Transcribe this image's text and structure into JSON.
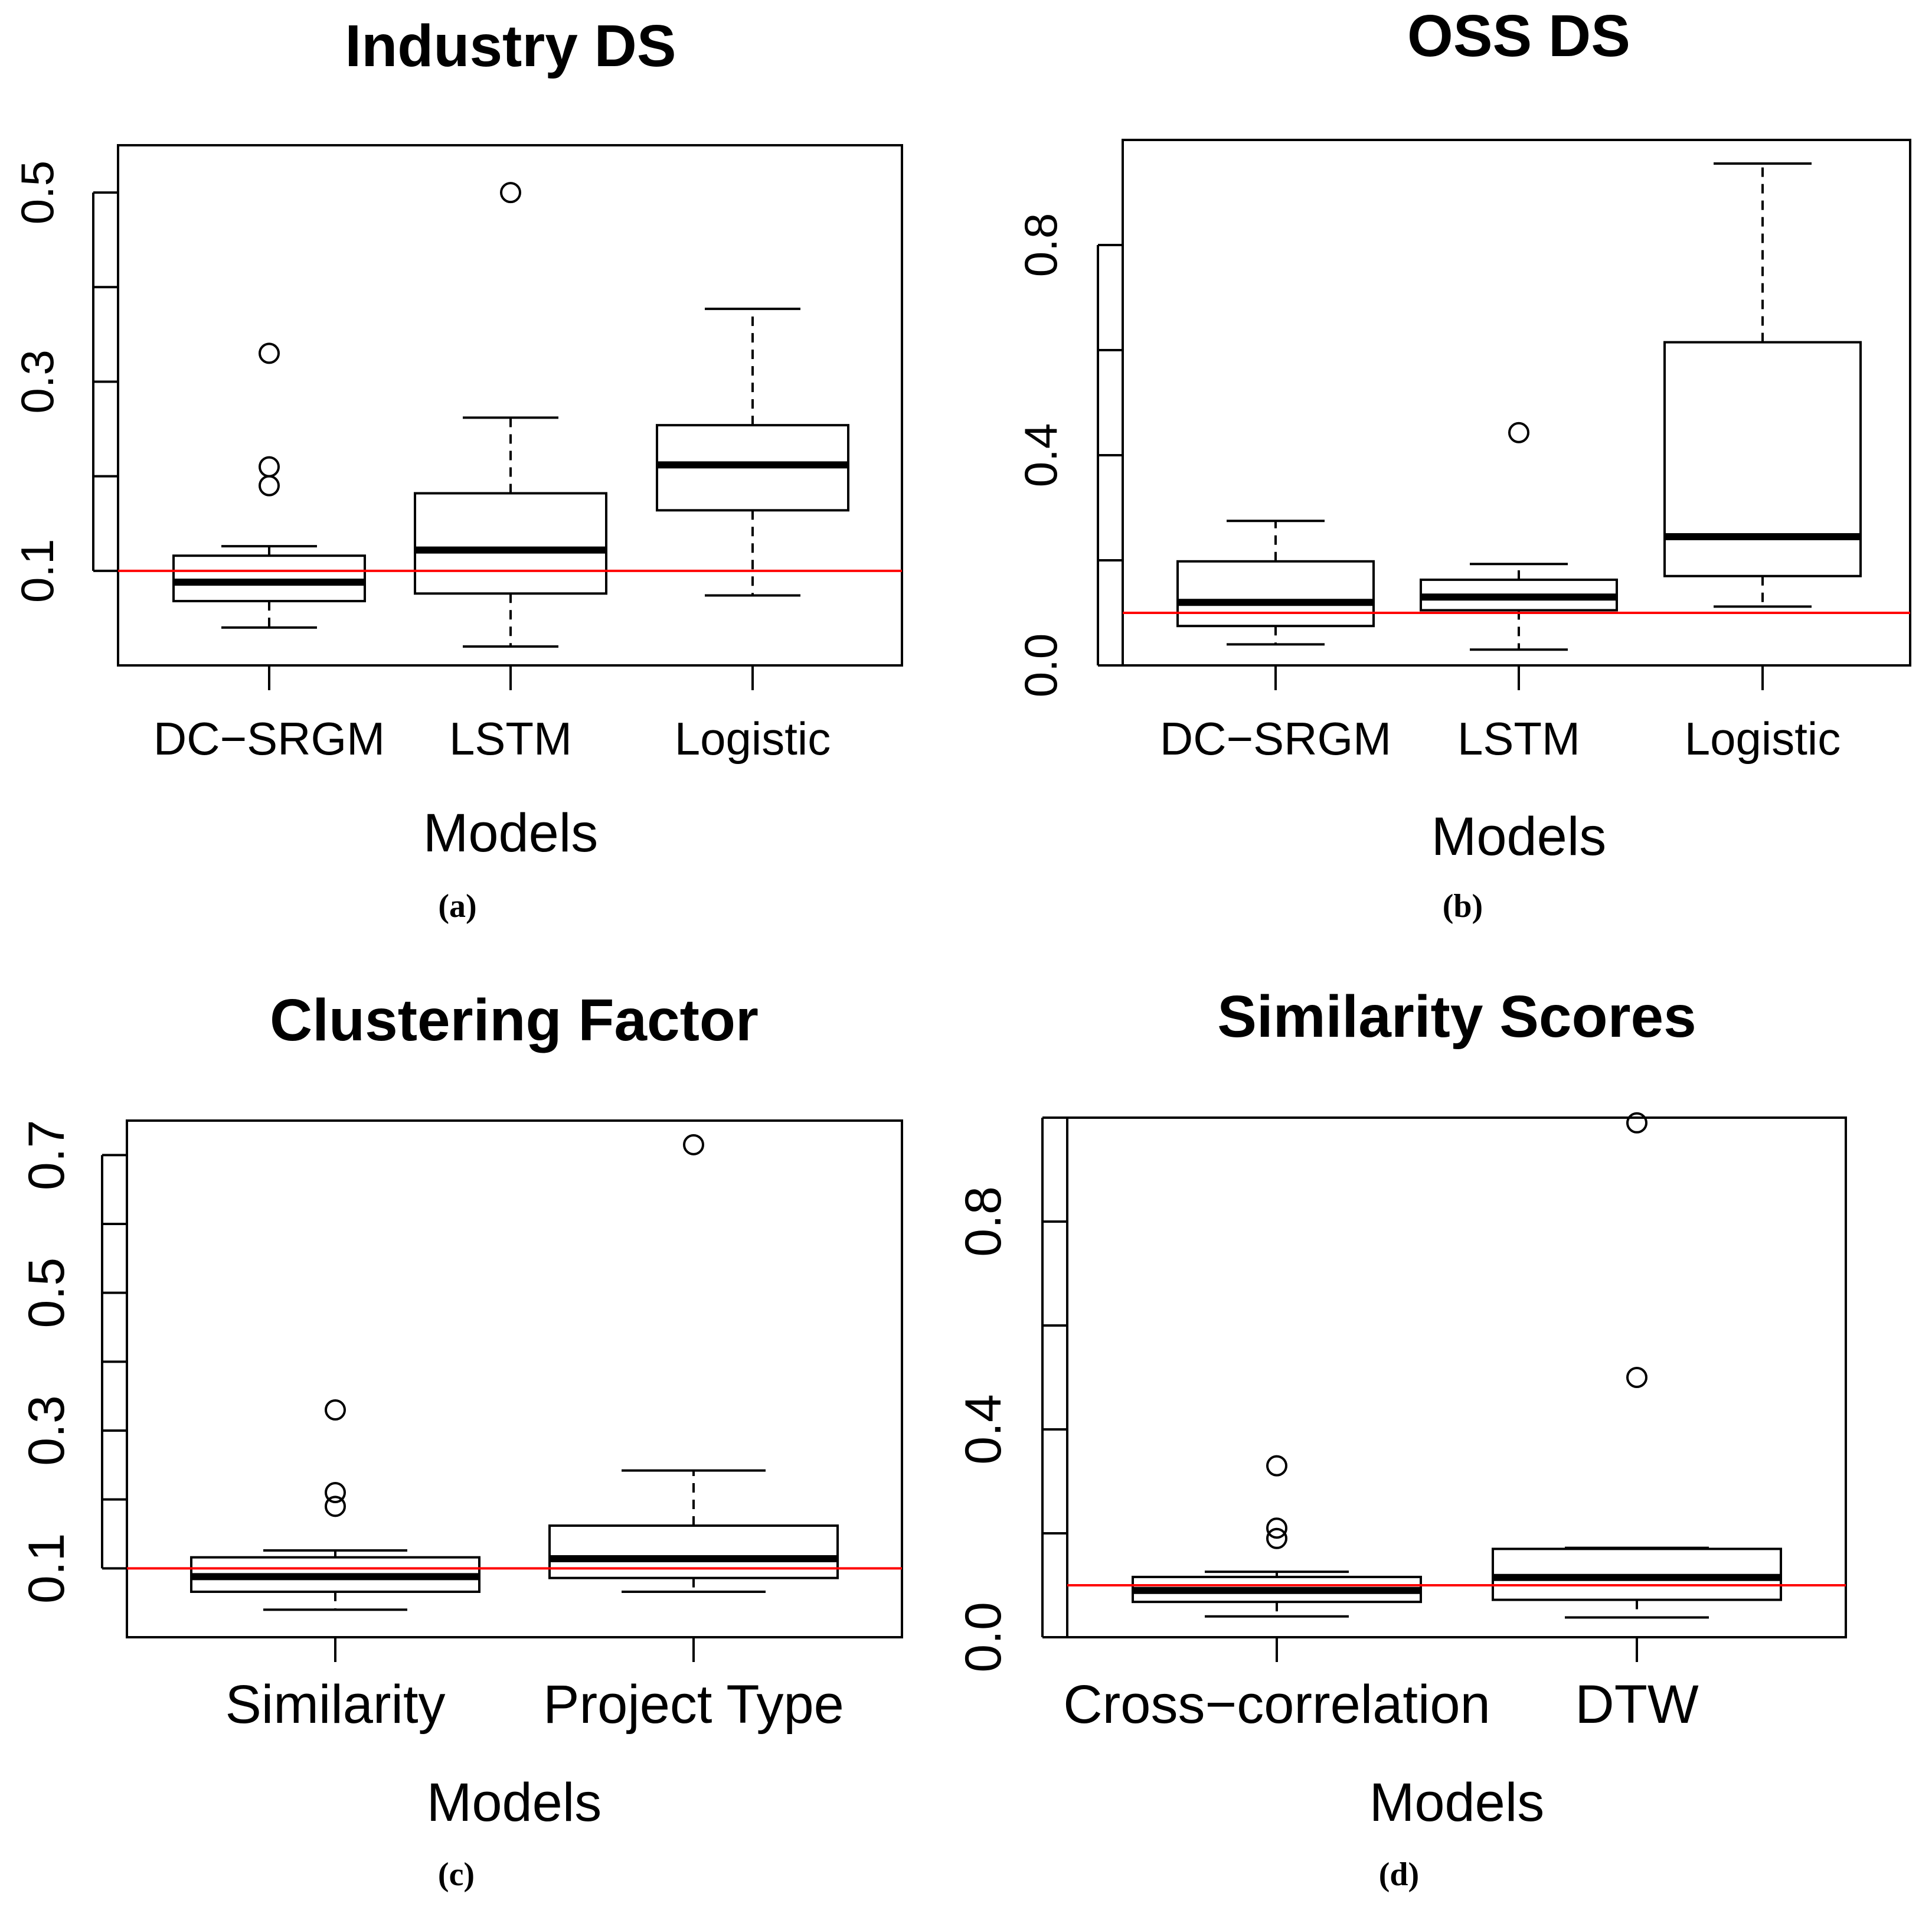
{
  "colors": {
    "box": "#000000",
    "reference_line": "#ff0000",
    "background": "#ffffff"
  },
  "chart_data": [
    {
      "id": "a",
      "type": "box",
      "title": "Industry DS",
      "xlabel": "Models",
      "ylabel": "",
      "caption": "(a)",
      "ylim": [
        0.0,
        0.55
      ],
      "yticks": [
        0.1,
        0.2,
        0.3,
        0.4,
        0.5
      ],
      "ytick_labels": [
        "0.1",
        "",
        "0.3",
        "",
        "0.5"
      ],
      "reference_line": 0.1,
      "categories": [
        "DC−SRGM",
        "LSTM",
        "Logistic"
      ],
      "boxes": [
        {
          "whisker_low": 0.04,
          "q1": 0.068,
          "median": 0.088,
          "q3": 0.116,
          "whisker_high": 0.126,
          "outliers": [
            0.33,
            0.21,
            0.19
          ]
        },
        {
          "whisker_low": 0.02,
          "q1": 0.076,
          "median": 0.122,
          "q3": 0.182,
          "whisker_high": 0.262,
          "outliers": [
            0.5
          ]
        },
        {
          "whisker_low": 0.074,
          "q1": 0.164,
          "median": 0.212,
          "q3": 0.254,
          "whisker_high": 0.377,
          "outliers": []
        }
      ]
    },
    {
      "id": "b",
      "type": "box",
      "title": "OSS DS",
      "xlabel": "Models",
      "ylabel": "",
      "caption": "(b)",
      "ylim": [
        0.0,
        1.0
      ],
      "yticks": [
        0.0,
        0.2,
        0.4,
        0.6,
        0.8
      ],
      "ytick_labels": [
        "0.0",
        "",
        "0.4",
        "",
        "0.8"
      ],
      "reference_line": 0.1,
      "categories": [
        "DC−SRGM",
        "LSTM",
        "Logistic"
      ],
      "boxes": [
        {
          "whisker_low": 0.04,
          "q1": 0.075,
          "median": 0.12,
          "q3": 0.198,
          "whisker_high": 0.275,
          "outliers": []
        },
        {
          "whisker_low": 0.03,
          "q1": 0.105,
          "median": 0.13,
          "q3": 0.163,
          "whisker_high": 0.193,
          "outliers": [
            0.443
          ]
        },
        {
          "whisker_low": 0.112,
          "q1": 0.17,
          "median": 0.245,
          "q3": 0.615,
          "whisker_high": 0.955,
          "outliers": []
        }
      ]
    },
    {
      "id": "c",
      "type": "box",
      "title": "Clustering Factor",
      "xlabel": "Models",
      "ylabel": "",
      "caption": "(c)",
      "ylim": [
        0.0,
        0.75
      ],
      "yticks": [
        0.1,
        0.2,
        0.3,
        0.4,
        0.5,
        0.6,
        0.7
      ],
      "ytick_labels": [
        "0.1",
        "",
        "0.3",
        "",
        "0.5",
        "",
        "0.7"
      ],
      "reference_line": 0.1,
      "categories": [
        "Similarity",
        "Project Type"
      ],
      "boxes": [
        {
          "whisker_low": 0.04,
          "q1": 0.066,
          "median": 0.088,
          "q3": 0.116,
          "whisker_high": 0.126,
          "outliers": [
            0.33,
            0.21,
            0.19
          ]
        },
        {
          "whisker_low": 0.066,
          "q1": 0.086,
          "median": 0.114,
          "q3": 0.162,
          "whisker_high": 0.242,
          "outliers": [
            0.715
          ]
        }
      ]
    },
    {
      "id": "d",
      "type": "box",
      "title": "Similarity Scores",
      "xlabel": "Models",
      "ylabel": "",
      "caption": "(d)",
      "ylim": [
        0.0,
        1.0
      ],
      "yticks": [
        0.0,
        0.2,
        0.4,
        0.6,
        0.8,
        1.0
      ],
      "ytick_labels": [
        "0.0",
        "",
        "0.4",
        "",
        "0.8",
        ""
      ],
      "reference_line": 0.1,
      "categories": [
        "Cross−correlation",
        "DTW"
      ],
      "boxes": [
        {
          "whisker_low": 0.04,
          "q1": 0.068,
          "median": 0.09,
          "q3": 0.116,
          "whisker_high": 0.126,
          "outliers": [
            0.33,
            0.21,
            0.19
          ]
        },
        {
          "whisker_low": 0.038,
          "q1": 0.072,
          "median": 0.115,
          "q3": 0.17,
          "whisker_high": 0.172,
          "outliers": [
            0.99,
            0.5
          ]
        }
      ]
    }
  ]
}
